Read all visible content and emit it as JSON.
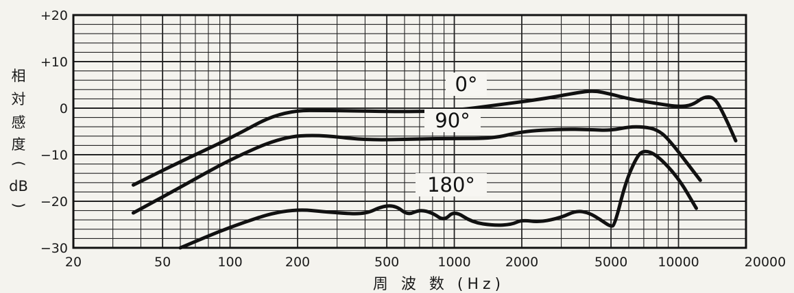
{
  "chart_data": {
    "type": "line",
    "title": "",
    "xlabel": "周 波 数 (Hz)",
    "ylabel_chars": [
      "相",
      "対",
      "感",
      "度",
      "(",
      "dB",
      ")"
    ],
    "x_scale": "log",
    "xlim": [
      20,
      20000
    ],
    "ylim": [
      -30,
      20
    ],
    "x_ticks": [
      {
        "value": 20,
        "label": "20"
      },
      {
        "value": 50,
        "label": "50"
      },
      {
        "value": 100,
        "label": "100"
      },
      {
        "value": 200,
        "label": "200"
      },
      {
        "value": 500,
        "label": "500"
      },
      {
        "value": 1000,
        "label": "1000"
      },
      {
        "value": 2000,
        "label": "2000"
      },
      {
        "value": 5000,
        "label": "5000"
      },
      {
        "value": 10000,
        "label": "10000"
      },
      {
        "value": 20000,
        "label": "20000"
      }
    ],
    "y_ticks": [
      {
        "value": 20,
        "label": "+20"
      },
      {
        "value": 10,
        "label": "+10"
      },
      {
        "value": 0,
        "label": "0"
      },
      {
        "value": -10,
        "label": "−10"
      },
      {
        "value": -20,
        "label": "−20"
      },
      {
        "value": -30,
        "label": "−30"
      }
    ],
    "grid": true,
    "series": [
      {
        "name": "0°",
        "x": [
          37,
          60,
          100,
          170,
          300,
          600,
          1000,
          1500,
          2500,
          3500,
          4200,
          5000,
          6000,
          8000,
          10000,
          11500,
          13000,
          14500,
          16000,
          18000
        ],
        "y": [
          -16.5,
          -11.5,
          -6.5,
          -0.5,
          -0.5,
          -0.8,
          -0.5,
          0.6,
          2.0,
          3.3,
          3.8,
          3.0,
          2.0,
          1.0,
          0.3,
          0.6,
          2.5,
          2.3,
          -1.5,
          -7.0
        ]
      },
      {
        "name": "90°",
        "x": [
          37,
          60,
          100,
          170,
          250,
          400,
          700,
          1000,
          1500,
          2000,
          3000,
          4000,
          5000,
          6000,
          7000,
          8000,
          9000,
          12500
        ],
        "y": [
          -22.5,
          -17,
          -11,
          -6.2,
          -5.7,
          -6.9,
          -6.6,
          -6.5,
          -6.5,
          -5.0,
          -4.5,
          -4.6,
          -4.8,
          -4.0,
          -4.0,
          -4.6,
          -6.5,
          -15.5
        ]
      },
      {
        "name": "180°",
        "x": [
          60,
          100,
          180,
          300,
          400,
          480,
          550,
          620,
          700,
          800,
          900,
          1000,
          1200,
          1500,
          1800,
          2000,
          2400,
          3000,
          3500,
          4000,
          4500,
          5000,
          5200,
          5800,
          6500,
          7000,
          8000,
          10000,
          12000
        ],
        "y": [
          -30,
          -25.5,
          -21.5,
          -22.5,
          -22.8,
          -21.0,
          -21.0,
          -23.0,
          -21.8,
          -22.5,
          -24.2,
          -22.0,
          -24.5,
          -25.2,
          -25.0,
          -24.0,
          -24.5,
          -23.5,
          -22.0,
          -22.5,
          -24.0,
          -25.5,
          -25.0,
          -16.0,
          -10.5,
          -9.0,
          -10.0,
          -15.0,
          -21.5
        ]
      }
    ],
    "annotations": [
      {
        "text": "0°",
        "series": "0°"
      },
      {
        "text": "90°",
        "series": "90°"
      },
      {
        "text": "180°",
        "series": "180°"
      }
    ]
  }
}
